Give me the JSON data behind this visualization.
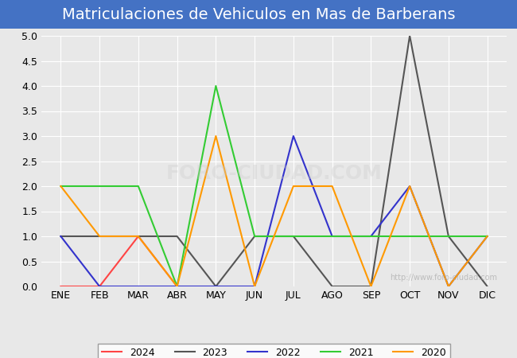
{
  "title": "Matriculaciones de Vehiculos en Mas de Barberans",
  "months": [
    "ENE",
    "FEB",
    "MAR",
    "ABR",
    "MAY",
    "JUN",
    "JUL",
    "AGO",
    "SEP",
    "OCT",
    "NOV",
    "DIC"
  ],
  "series": {
    "2024": {
      "values": [
        0,
        0,
        1,
        0,
        null,
        null,
        null,
        null,
        null,
        null,
        null,
        null
      ],
      "color": "#ff4444",
      "linewidth": 1.5
    },
    "2023": {
      "values": [
        1,
        1,
        1,
        1,
        0,
        1,
        1,
        0,
        0,
        5,
        1,
        0
      ],
      "color": "#555555",
      "linewidth": 1.5
    },
    "2022": {
      "values": [
        1,
        0,
        0,
        0,
        0,
        0,
        3,
        1,
        1,
        2,
        0,
        1
      ],
      "color": "#3333cc",
      "linewidth": 1.5
    },
    "2021": {
      "values": [
        2,
        2,
        2,
        0,
        4,
        1,
        1,
        1,
        1,
        1,
        1,
        1
      ],
      "color": "#33cc33",
      "linewidth": 1.5
    },
    "2020": {
      "values": [
        2,
        1,
        1,
        0,
        3,
        0,
        2,
        2,
        0,
        2,
        0,
        1
      ],
      "color": "#ff9900",
      "linewidth": 1.5
    }
  },
  "ylim": [
    0,
    5.0
  ],
  "yticks": [
    0.0,
    0.5,
    1.0,
    1.5,
    2.0,
    2.5,
    3.0,
    3.5,
    4.0,
    4.5,
    5.0
  ],
  "background_color": "#e8e8e8",
  "plot_bg_color": "#e8e8e8",
  "title_bg_color": "#4472c4",
  "title_text_color": "#ffffff",
  "title_fontsize": 14,
  "watermark": "http://www.foro-ciudad.com",
  "legend_years": [
    "2024",
    "2023",
    "2022",
    "2021",
    "2020"
  ],
  "legend_colors": [
    "#ff4444",
    "#555555",
    "#3333cc",
    "#33cc33",
    "#ff9900"
  ]
}
